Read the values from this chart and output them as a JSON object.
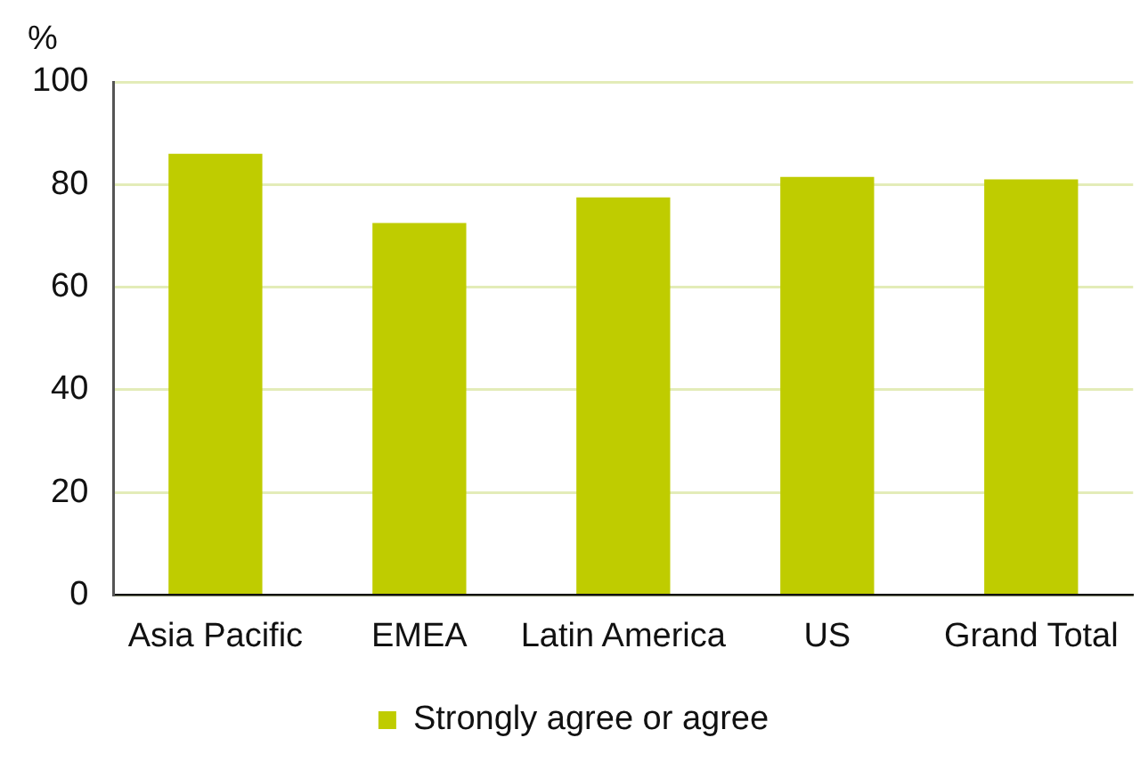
{
  "chart_data": {
    "type": "bar",
    "ylabel": "%",
    "categories": [
      "Asia Pacific",
      "EMEA",
      "Latin America",
      "US",
      "Grand Total"
    ],
    "series": [
      {
        "name": "Strongly agree or agree",
        "color": "#bfcc00",
        "values": [
          86,
          72.5,
          77.5,
          81.5,
          81
        ]
      }
    ],
    "ylim": [
      0,
      100
    ],
    "yticks": [
      0,
      20,
      40,
      60,
      80,
      100
    ],
    "grid": "y",
    "legend": "bottom"
  }
}
